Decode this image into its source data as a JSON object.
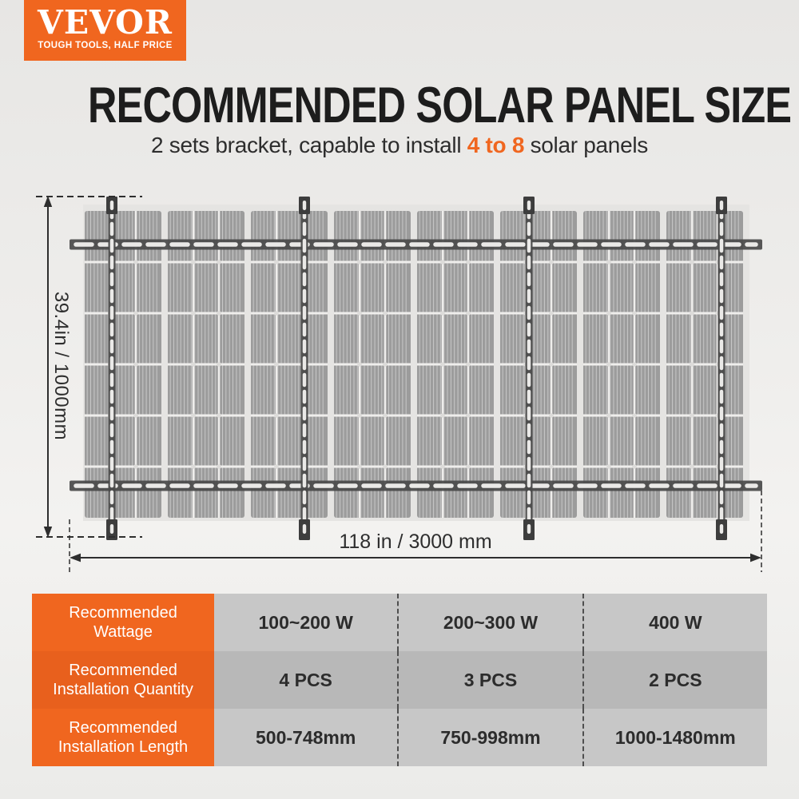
{
  "brand": {
    "logo_text": "VEVOR",
    "tagline": "TOUGH TOOLS, HALF PRICE"
  },
  "header": {
    "title": "RECOMMENDED SOLAR PANEL SIZE",
    "subtitle_prefix": "2 sets bracket, capable to install ",
    "subtitle_highlight": "4 to 8",
    "subtitle_suffix": " solar panels"
  },
  "diagram": {
    "height_label": "39.4in / 1000mm",
    "width_label": "118 in / 3000 mm",
    "panels": 8,
    "cell_columns": 3,
    "cell_rows": 6,
    "horizontal_rails": 2,
    "vertical_rails": 4
  },
  "table": {
    "rows": [
      {
        "label_line1": "Recommended",
        "label_line2": "Wattage",
        "values": [
          "100~200 W",
          "200~300 W",
          "400 W"
        ]
      },
      {
        "label_line1": "Recommended",
        "label_line2": "Installation Quantity",
        "values": [
          "4 PCS",
          "3 PCS",
          "2 PCS"
        ]
      },
      {
        "label_line1": "Recommended",
        "label_line2": "Installation Length",
        "values": [
          "500-748mm",
          "750-998mm",
          "1000-1480mm"
        ]
      }
    ]
  },
  "colors": {
    "brand_orange": "#f0661f",
    "brand_orange_dark": "#e8601d",
    "panel_backing": "#e5e4e2",
    "panel_cell": "#9c9c9c",
    "panel_separator": "#efeeec",
    "rail": "#4a4a4a",
    "rail_foot": "#3d3d3d",
    "rail_slot": "#eae9e7",
    "dimension": "#2e2e2e",
    "table_gray_light": "#c7c7c7",
    "table_gray_dark": "#b8b8b8",
    "table_text": "#2c2c2c"
  }
}
